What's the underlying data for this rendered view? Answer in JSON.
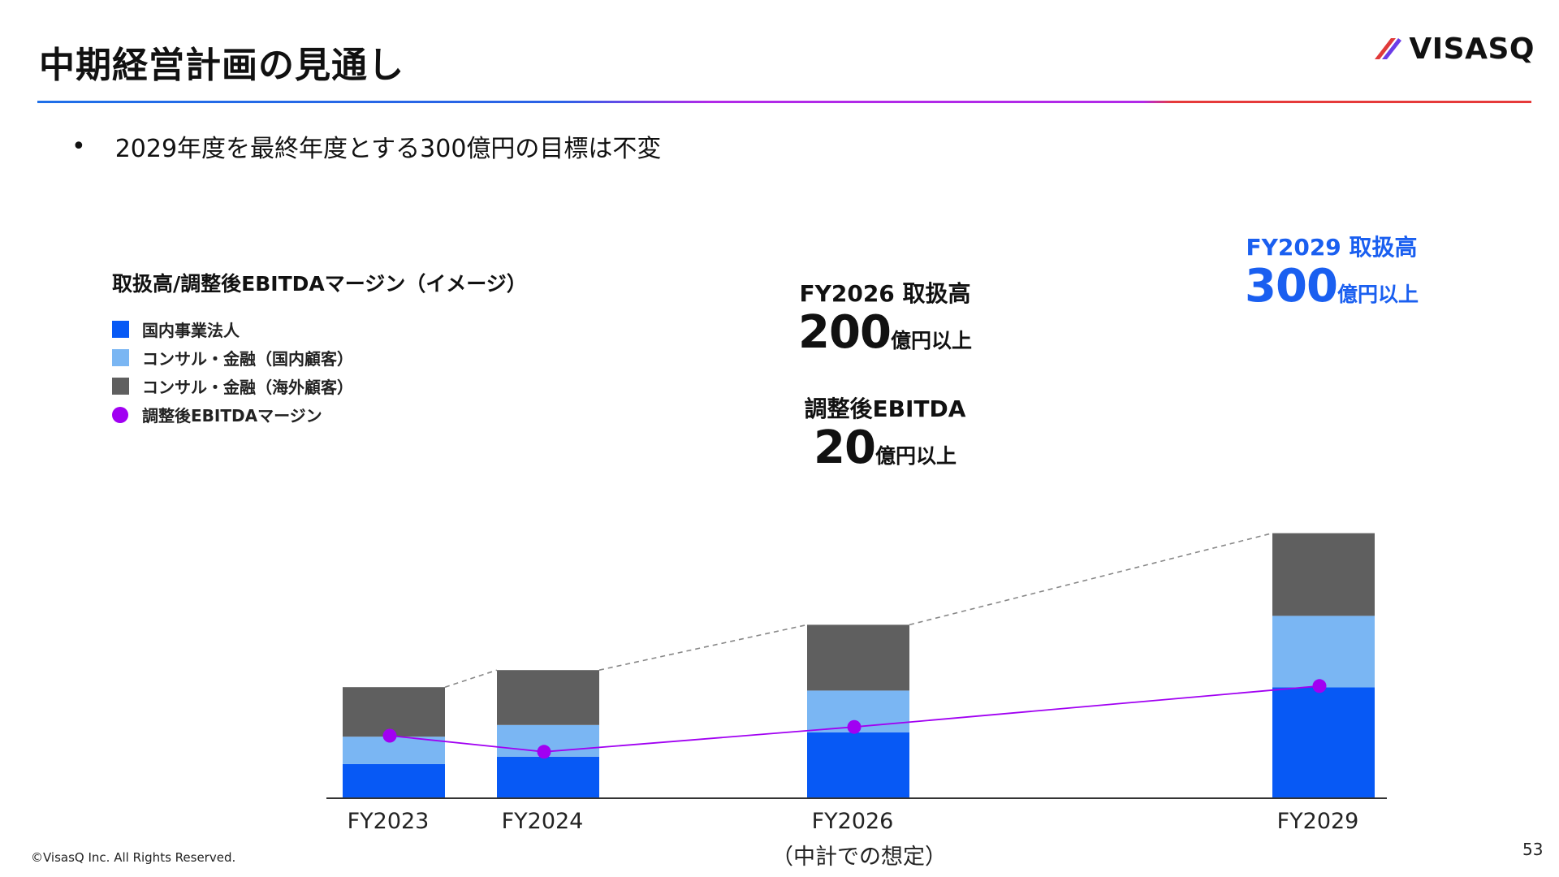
{
  "header": {
    "title": "中期経営計画の見通し",
    "logo_text": "VISASQ"
  },
  "bullet": {
    "marker": "•",
    "text": "2029年度を最終年度とする300億円の目標は不変"
  },
  "chart_data": {
    "type": "bar",
    "title": "取扱高/調整後EBITDAマージン（イメージ）",
    "categories": [
      "FY2023",
      "FY2024",
      "FY2026",
      "FY2029"
    ],
    "category_note": {
      "FY2026": "（中計での想定）"
    },
    "series": [
      {
        "name": "国内事業法人",
        "kind": "stacked-bar",
        "color": "#0759f5",
        "values": [
          20.6,
          25.1,
          40.1,
          67.8
        ]
      },
      {
        "name": "コンサル・金融（国内顧客）",
        "kind": "stacked-bar",
        "color": "#7ab6f3",
        "values": [
          16.8,
          19.5,
          25.7,
          44.0
        ]
      },
      {
        "name": "コンサル・金融（海外顧客）",
        "kind": "stacked-bar",
        "color": "#5f5f5f",
        "values": [
          30.5,
          33.8,
          40.5,
          50.9
        ]
      },
      {
        "name": "調整後EBITDAマージン",
        "kind": "line",
        "color": "#a100f2",
        "values": [
          0.2,
          0.09,
          0.26,
          0.54
        ]
      }
    ],
    "legend_placement": "top-left",
    "annotations": [
      {
        "label": "FY2026 取扱高",
        "value": "200",
        "unit": "億円以上"
      },
      {
        "label": "調整後EBITDA",
        "value": "20",
        "unit": "億円以上"
      },
      {
        "label": "FY2029 取扱高",
        "value": "300",
        "unit": "億円以上",
        "color": "#1a5ff0"
      }
    ],
    "axis_color": "#333333",
    "connector_color": "#888888"
  },
  "footer": {
    "copyright": "©VisasQ Inc. All Rights Reserved.",
    "page_number": "53"
  }
}
